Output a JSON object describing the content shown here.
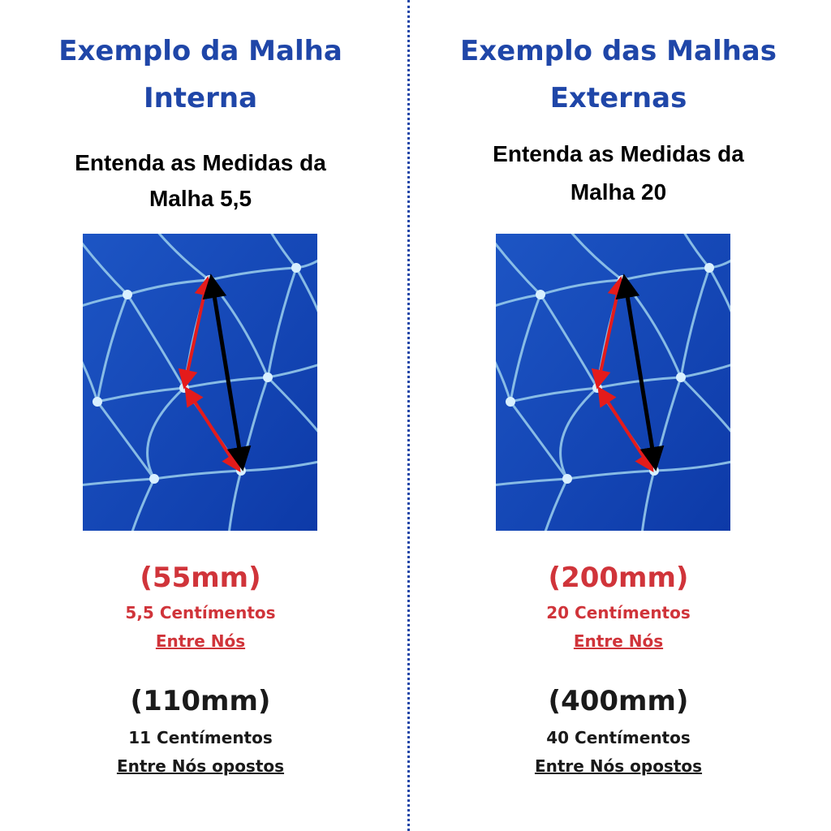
{
  "columns": [
    {
      "title": [
        "Exemplo da Malha",
        "Interna"
      ],
      "subtitle": [
        "Entenda as Medidas da",
        "Malha 5,5"
      ],
      "adjacent": {
        "measure": "(55mm)",
        "cm": "5,5 Centímentos",
        "note": "Entre Nós"
      },
      "opposite": {
        "measure": "(110mm)",
        "cm": "11 Centímentos",
        "note": "Entre Nós opostos"
      }
    },
    {
      "title": [
        "Exemplo das Malhas",
        "Externas"
      ],
      "subtitle": [
        "Entenda as Medidas da",
        "Malha 20"
      ],
      "adjacent": {
        "measure": "(200mm)",
        "cm": "20 Centímentos",
        "note": "Entre Nós"
      },
      "opposite": {
        "measure": "(400mm)",
        "cm": "40 Centímentos",
        "note": "Entre Nós opostos"
      }
    }
  ]
}
